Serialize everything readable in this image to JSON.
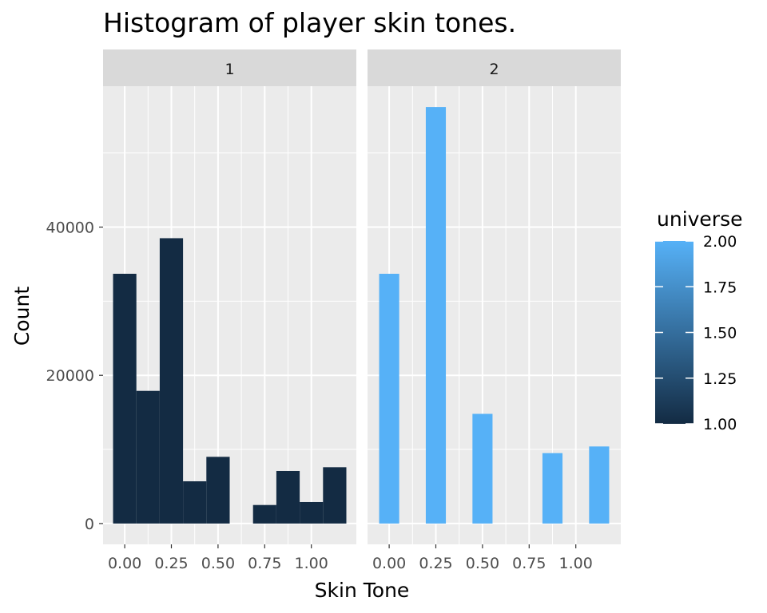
{
  "chart_data": {
    "type": "bar",
    "title": "Histogram of player skin tones.",
    "xlabel": "Skin Tone",
    "ylabel": "Count",
    "facets": [
      {
        "label": "1",
        "universe": 1,
        "color": "#132b43",
        "bins": [
          {
            "x0": -0.0625,
            "x1": 0.0625,
            "count": 33700
          },
          {
            "x0": 0.0625,
            "x1": 0.1875,
            "count": 17900
          },
          {
            "x0": 0.1875,
            "x1": 0.3125,
            "count": 38500
          },
          {
            "x0": 0.3125,
            "x1": 0.4375,
            "count": 5700
          },
          {
            "x0": 0.4375,
            "x1": 0.5625,
            "count": 9000
          },
          {
            "x0": 0.5625,
            "x1": 0.6875,
            "count": 0
          },
          {
            "x0": 0.6875,
            "x1": 0.8125,
            "count": 2500
          },
          {
            "x0": 0.8125,
            "x1": 0.9375,
            "count": 7100
          },
          {
            "x0": 0.9375,
            "x1": 1.0625,
            "count": 2900
          },
          {
            "x0": 1.0625,
            "x1": 1.1875,
            "count": 7600
          }
        ]
      },
      {
        "label": "2",
        "universe": 2,
        "color": "#56b1f7",
        "bins": [
          {
            "x0": -0.0625,
            "x1": 0.0625,
            "count": 33700
          },
          {
            "x0": 0.1875,
            "x1": 0.3125,
            "count": 56200
          },
          {
            "x0": 0.4375,
            "x1": 0.5625,
            "count": 14800
          },
          {
            "x0": 0.8125,
            "x1": 0.9375,
            "count": 9500
          },
          {
            "x0": 1.0625,
            "x1": 1.1875,
            "count": 10400
          }
        ]
      }
    ],
    "x_ticks": [
      "0.00",
      "0.25",
      "0.50",
      "0.75",
      "1.00"
    ],
    "x_tick_values": [
      0,
      0.25,
      0.5,
      0.75,
      1.0
    ],
    "x_range": [
      -0.116,
      1.241
    ],
    "y_ticks": [
      "0",
      "20000",
      "40000"
    ],
    "y_tick_values": [
      0,
      20000,
      40000
    ],
    "y_range": [
      -2810,
      59010
    ],
    "legend": {
      "title": "universe",
      "position": "right",
      "ticks": [
        "1.00",
        "1.25",
        "1.50",
        "1.75",
        "2.00"
      ],
      "tick_values": [
        1.0,
        1.25,
        1.5,
        1.75,
        2.0
      ],
      "low_color": "#132b43",
      "high_color": "#56b1f7"
    },
    "panel_background": "#ebebeb",
    "strip_background": "#d9d9d9",
    "grid": true
  }
}
